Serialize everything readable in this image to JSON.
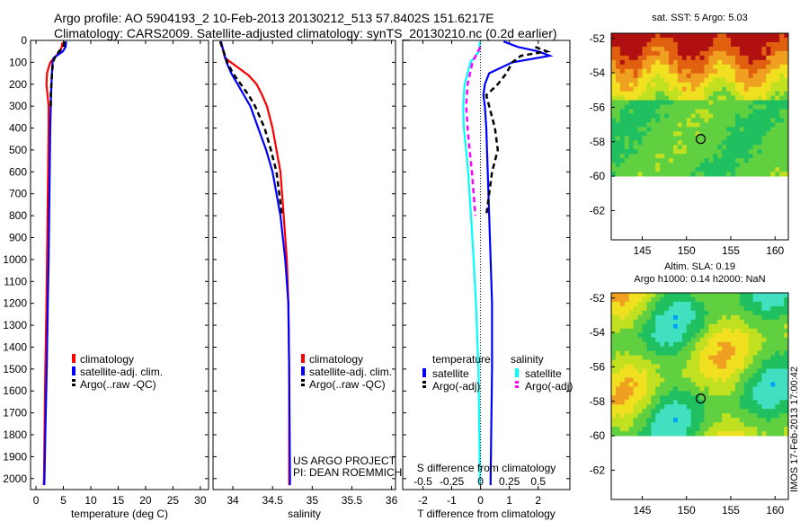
{
  "header": {
    "line1": "Argo profile: AO 5904193_2 10-Feb-2013 20130212_513 57.8402S 151.6217E",
    "line2": "Climatology: CARS2009. Satellite-adjusted climatology: synTS_20130210.nc (0.2d earlier)"
  },
  "stamp": "IMOS 17-Feb-2013 17:00:42",
  "colors": {
    "climatology": "#ff0000",
    "satellite": "#0000ff",
    "argo": "#000000",
    "sal_sat": "#00ffff",
    "sal_argo": "#ff00ff"
  },
  "chart_data": [
    {
      "type": "line",
      "panel": "temperature",
      "xlabel": "temperature (deg C)",
      "xlim": [
        -1,
        31.5
      ],
      "xticks": [
        0,
        5,
        10,
        15,
        20,
        25,
        30
      ],
      "ylim": [
        2050,
        0
      ],
      "yticks": [
        0,
        100,
        200,
        300,
        400,
        500,
        600,
        700,
        800,
        900,
        1000,
        1100,
        1200,
        1300,
        1400,
        1500,
        1600,
        1700,
        1800,
        1900,
        2000
      ],
      "legend": [
        "climatology",
        "satellite-adj. clim.",
        "Argo(..raw -QC)"
      ],
      "series": [
        {
          "name": "climatology",
          "style": "solid",
          "color": "#ff0000",
          "depth": [
            10,
            30,
            50,
            80,
            100,
            150,
            200,
            250,
            300,
            400,
            500,
            600,
            800,
            1000,
            1200,
            1500,
            1800,
            2000,
            2030
          ],
          "values": [
            4.8,
            4.7,
            4.4,
            3.3,
            2.6,
            2.0,
            1.9,
            2.1,
            2.3,
            2.3,
            2.25,
            2.2,
            2.1,
            2.0,
            1.9,
            1.7,
            1.55,
            1.45,
            1.4
          ]
        },
        {
          "name": "satellite-adj. clim.",
          "style": "solid",
          "color": "#0000ff",
          "depth": [
            5,
            30,
            50,
            80,
            100,
            150,
            200,
            250,
            300,
            400,
            500,
            600,
            800,
            1000,
            1200,
            1500,
            1800,
            2000,
            2030
          ],
          "values": [
            5.5,
            5.4,
            4.9,
            3.2,
            3.0,
            2.9,
            2.8,
            2.75,
            2.7,
            2.6,
            2.55,
            2.5,
            2.4,
            2.3,
            2.15,
            1.95,
            1.7,
            1.55,
            1.5
          ]
        },
        {
          "name": "Argo(..raw -QC)",
          "style": "dashed",
          "color": "#000000",
          "depth": [
            5,
            30,
            50,
            80,
            100,
            150,
            200,
            250,
            300
          ],
          "values": [
            5.2,
            5.0,
            4.2,
            3.4,
            3.1,
            2.9,
            2.8,
            2.7,
            2.7
          ]
        }
      ]
    },
    {
      "type": "line",
      "panel": "salinity",
      "xlabel": "salinity",
      "xlim": [
        33.75,
        36.05
      ],
      "xticks": [
        34,
        34.5,
        35,
        35.5,
        36
      ],
      "xticklabels": [
        "34",
        "34.5",
        "35",
        "35.5",
        "36"
      ],
      "ylim": [
        2050,
        0
      ],
      "legend": [
        "climatology",
        "satellite-adj. clim.",
        "Argo(..raw -QC)"
      ],
      "annotation": [
        "US ARGO PROJECT",
        "PI: DEAN ROEMMICH"
      ],
      "series": [
        {
          "name": "climatology",
          "style": "solid",
          "color": "#ff0000",
          "depth": [
            5,
            80,
            120,
            160,
            200,
            250,
            300,
            400,
            500,
            600,
            800,
            1000,
            1200,
            1500,
            2000,
            2030
          ],
          "values": [
            33.85,
            33.9,
            34.05,
            34.2,
            34.3,
            34.37,
            34.43,
            34.5,
            34.55,
            34.6,
            34.64,
            34.68,
            34.7,
            34.71,
            34.71,
            34.71
          ]
        },
        {
          "name": "satellite-adj. clim.",
          "style": "solid",
          "color": "#0000ff",
          "depth": [
            5,
            100,
            150,
            200,
            250,
            300,
            400,
            500,
            600,
            800,
            1000,
            1200,
            1500,
            2000,
            2030
          ],
          "values": [
            33.85,
            33.92,
            33.98,
            34.06,
            34.14,
            34.22,
            34.32,
            34.42,
            34.5,
            34.6,
            34.66,
            34.7,
            34.71,
            34.72,
            34.72
          ]
        },
        {
          "name": "Argo(..raw -QC)",
          "style": "dashed",
          "color": "#000000",
          "depth": [
            5,
            100,
            150,
            200,
            250,
            300,
            400,
            500,
            600,
            800
          ],
          "values": [
            33.84,
            33.93,
            34.0,
            34.1,
            34.2,
            34.28,
            34.4,
            34.48,
            34.55,
            34.62
          ]
        }
      ]
    },
    {
      "type": "line",
      "panel": "difference from climatology",
      "xlabel": "T difference from climatology",
      "xlabel_top": "S difference from climatology",
      "xlim": [
        -2.7,
        3.1
      ],
      "xticks": [
        -2,
        -1,
        0,
        1,
        2
      ],
      "sticks": [
        -0.5,
        -0.25,
        0,
        0.25,
        0.5
      ],
      "sticklabels": [
        "-0.5",
        "-0.25",
        "0",
        "0.25",
        "0.5"
      ],
      "ylim": [
        2050,
        0
      ],
      "legend": {
        "temperature_title": "temperature",
        "salinity_title": "salinity",
        "items": [
          "satellite",
          "Argo(-adj)",
          "satellite",
          "Argo(-adj)"
        ]
      },
      "series": [
        {
          "name": "satellite",
          "group": "temperature",
          "style": "solid",
          "color": "#0000ff",
          "depth": [
            5,
            30,
            50,
            70,
            100,
            150,
            200,
            250,
            300,
            400,
            600,
            800,
            1000,
            1200,
            1500,
            2000,
            2030
          ],
          "values": [
            0.8,
            1.3,
            2.0,
            2.4,
            1.1,
            0.3,
            0.15,
            0.1,
            0.15,
            0.2,
            0.25,
            0.3,
            0.35,
            0.4,
            0.4,
            0.35,
            0.35
          ]
        },
        {
          "name": "Argo(-adj)",
          "group": "temperature",
          "style": "dashed",
          "color": "#000000",
          "depth": [
            30,
            50,
            70,
            100,
            150,
            200,
            250,
            300,
            400,
            500,
            600,
            800
          ],
          "values": [
            1.9,
            2.3,
            1.4,
            1.1,
            0.9,
            0.6,
            0.2,
            0.3,
            0.5,
            0.6,
            0.4,
            0.2
          ]
        },
        {
          "name": "satellite",
          "group": "salinity",
          "style": "solid",
          "color": "#00ffff",
          "depth": [
            5,
            50,
            100,
            200,
            300,
            400,
            500,
            600,
            800,
            1000,
            1200,
            1500,
            2000,
            2030
          ],
          "values": [
            -0.02,
            -0.05,
            -0.35,
            -0.55,
            -0.6,
            -0.58,
            -0.5,
            -0.43,
            -0.33,
            -0.24,
            -0.16,
            -0.07,
            -0.02,
            -0.02
          ]
        },
        {
          "name": "Argo(-adj)",
          "group": "salinity",
          "style": "dashed",
          "color": "#ff00ff",
          "depth": [
            30,
            100,
            200,
            300,
            400,
            500,
            600,
            700,
            800
          ],
          "values": [
            -0.01,
            -0.28,
            -0.45,
            -0.5,
            -0.45,
            -0.38,
            -0.3,
            -0.24,
            -0.18
          ]
        }
      ]
    },
    {
      "type": "heatmap",
      "panel": "map-sst",
      "title": "sat. SST: 5 Argo: 5.03",
      "xlim": [
        141.5,
        161.5
      ],
      "ylim": [
        -63.7,
        -51.7
      ],
      "xticks": [
        145,
        150,
        155,
        160
      ],
      "yticks": [
        -52,
        -54,
        -56,
        -58,
        -60,
        -62
      ],
      "data_lat_min": -60,
      "argo_marker": {
        "lon": 151.6,
        "lat": -57.84
      }
    },
    {
      "type": "heatmap",
      "panel": "map-sla",
      "title": [
        "Altim. SLA: 0.19",
        "Argo h1000: 0.14 h2000: NaN"
      ],
      "xlim": [
        141.5,
        161.5
      ],
      "ylim": [
        -63.7,
        -51.7
      ],
      "xticks": [
        145,
        150,
        155,
        160
      ],
      "yticks": [
        -52,
        -54,
        -56,
        -58,
        -60,
        -62
      ],
      "data_lat_min": -60,
      "argo_marker": {
        "lon": 151.6,
        "lat": -57.84
      }
    }
  ]
}
